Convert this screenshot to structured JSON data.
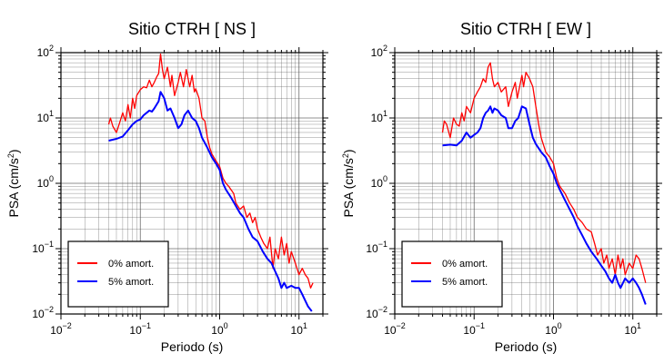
{
  "colors": {
    "series_0pct": "#ff0000",
    "series_5pct": "#0000ff",
    "grid": "#555555",
    "frame": "#000000"
  },
  "chart_data": [
    {
      "type": "line",
      "title": "Sitio CTRH [ NS ]",
      "xlabel": "Periodo (s)",
      "ylabel_main": "PSA (cm/s",
      "ylabel_sup": "2",
      "ylabel_end": ")",
      "xscale": "log",
      "yscale": "log",
      "xlim": [
        0.01,
        20
      ],
      "ylim": [
        0.01,
        100
      ],
      "x_ticks": [
        {
          "base": "10",
          "exp": "−2",
          "value": 0.01
        },
        {
          "base": "10",
          "exp": "−1",
          "value": 0.1
        },
        {
          "base": "10",
          "exp": "0",
          "value": 1
        },
        {
          "base": "10",
          "exp": "1",
          "value": 10
        }
      ],
      "y_ticks": [
        {
          "base": "10",
          "exp": "−2",
          "value": 0.01
        },
        {
          "base": "10",
          "exp": "−1",
          "value": 0.1
        },
        {
          "base": "10",
          "exp": "0",
          "value": 1
        },
        {
          "base": "10",
          "exp": "1",
          "value": 10
        },
        {
          "base": "10",
          "exp": "2",
          "value": 100
        }
      ],
      "grid": true,
      "legend_position": "bottom-left",
      "series": [
        {
          "name": "0% amort.",
          "color": "#ff0000",
          "points": [
            [
              0.04,
              8.0
            ],
            [
              0.042,
              10.0
            ],
            [
              0.045,
              7.5
            ],
            [
              0.05,
              6.0
            ],
            [
              0.055,
              8.5
            ],
            [
              0.06,
              12.0
            ],
            [
              0.065,
              9.0
            ],
            [
              0.07,
              16.0
            ],
            [
              0.075,
              10.0
            ],
            [
              0.08,
              20.0
            ],
            [
              0.085,
              14.0
            ],
            [
              0.09,
              22.0
            ],
            [
              0.1,
              27.0
            ],
            [
              0.11,
              30.0
            ],
            [
              0.12,
              29.0
            ],
            [
              0.13,
              38.0
            ],
            [
              0.14,
              30.0
            ],
            [
              0.15,
              35.0
            ],
            [
              0.16,
              42.0
            ],
            [
              0.17,
              48.0
            ],
            [
              0.18,
              95.0
            ],
            [
              0.19,
              55.0
            ],
            [
              0.2,
              40.0
            ],
            [
              0.22,
              60.0
            ],
            [
              0.24,
              30.0
            ],
            [
              0.25,
              45.0
            ],
            [
              0.27,
              22.0
            ],
            [
              0.3,
              35.0
            ],
            [
              0.32,
              50.0
            ],
            [
              0.35,
              30.0
            ],
            [
              0.38,
              55.0
            ],
            [
              0.4,
              40.0
            ],
            [
              0.42,
              30.0
            ],
            [
              0.45,
              45.0
            ],
            [
              0.48,
              25.0
            ],
            [
              0.5,
              28.0
            ],
            [
              0.55,
              20.0
            ],
            [
              0.6,
              10.0
            ],
            [
              0.65,
              9.0
            ],
            [
              0.7,
              5.0
            ],
            [
              0.75,
              3.5
            ],
            [
              0.8,
              2.8
            ],
            [
              0.9,
              2.2
            ],
            [
              1.0,
              1.8
            ],
            [
              1.1,
              1.2
            ],
            [
              1.2,
              1.0
            ],
            [
              1.3,
              0.9
            ],
            [
              1.5,
              0.7
            ],
            [
              1.6,
              0.5
            ],
            [
              1.8,
              0.4
            ],
            [
              2.0,
              0.45
            ],
            [
              2.2,
              0.3
            ],
            [
              2.4,
              0.35
            ],
            [
              2.6,
              0.25
            ],
            [
              2.8,
              0.3
            ],
            [
              3.0,
              0.2
            ],
            [
              3.3,
              0.15
            ],
            [
              3.6,
              0.12
            ],
            [
              4.0,
              0.1
            ],
            [
              4.3,
              0.15
            ],
            [
              4.7,
              0.05
            ],
            [
              5.0,
              0.1
            ],
            [
              5.5,
              0.07
            ],
            [
              6.0,
              0.15
            ],
            [
              6.5,
              0.08
            ],
            [
              7.0,
              0.12
            ],
            [
              7.5,
              0.06
            ],
            [
              8.0,
              0.09
            ],
            [
              9.0,
              0.06
            ],
            [
              10.0,
              0.04
            ],
            [
              11.0,
              0.05
            ],
            [
              12.0,
              0.04
            ],
            [
              13.0,
              0.035
            ],
            [
              14.0,
              0.025
            ],
            [
              15.0,
              0.03
            ]
          ]
        },
        {
          "name": "5% amort.",
          "color": "#0000ff",
          "points": [
            [
              0.04,
              4.5
            ],
            [
              0.05,
              4.8
            ],
            [
              0.06,
              5.2
            ],
            [
              0.07,
              6.5
            ],
            [
              0.08,
              8.0
            ],
            [
              0.09,
              9.0
            ],
            [
              0.1,
              9.5
            ],
            [
              0.11,
              11.0
            ],
            [
              0.12,
              12.0
            ],
            [
              0.13,
              13.0
            ],
            [
              0.14,
              12.5
            ],
            [
              0.15,
              14.0
            ],
            [
              0.17,
              18.0
            ],
            [
              0.18,
              25.0
            ],
            [
              0.2,
              20.0
            ],
            [
              0.22,
              13.0
            ],
            [
              0.24,
              14.0
            ],
            [
              0.27,
              10.0
            ],
            [
              0.3,
              7.0
            ],
            [
              0.33,
              8.0
            ],
            [
              0.36,
              11.0
            ],
            [
              0.4,
              13.0
            ],
            [
              0.45,
              10.0
            ],
            [
              0.5,
              9.0
            ],
            [
              0.55,
              7.0
            ],
            [
              0.6,
              5.0
            ],
            [
              0.7,
              3.5
            ],
            [
              0.8,
              2.5
            ],
            [
              0.9,
              2.0
            ],
            [
              1.0,
              1.6
            ],
            [
              1.1,
              1.0
            ],
            [
              1.2,
              0.8
            ],
            [
              1.4,
              0.6
            ],
            [
              1.6,
              0.45
            ],
            [
              1.8,
              0.35
            ],
            [
              2.0,
              0.3
            ],
            [
              2.3,
              0.2
            ],
            [
              2.6,
              0.15
            ],
            [
              3.0,
              0.13
            ],
            [
              3.5,
              0.09
            ],
            [
              4.0,
              0.07
            ],
            [
              4.5,
              0.06
            ],
            [
              5.0,
              0.045
            ],
            [
              5.5,
              0.035
            ],
            [
              6.0,
              0.025
            ],
            [
              6.5,
              0.03
            ],
            [
              7.0,
              0.025
            ],
            [
              8.0,
              0.027
            ],
            [
              9.0,
              0.025
            ],
            [
              10.0,
              0.025
            ],
            [
              11.0,
              0.02
            ],
            [
              12.0,
              0.016
            ],
            [
              13.0,
              0.013
            ],
            [
              14.5,
              0.011
            ]
          ]
        }
      ]
    },
    {
      "type": "line",
      "title": "Sitio CTRH [ EW ]",
      "xlabel": "Periodo (s)",
      "ylabel_main": "PSA (cm/s",
      "ylabel_sup": "2",
      "ylabel_end": ")",
      "xscale": "log",
      "yscale": "log",
      "xlim": [
        0.01,
        20
      ],
      "ylim": [
        0.01,
        100
      ],
      "x_ticks": [
        {
          "base": "10",
          "exp": "−2",
          "value": 0.01
        },
        {
          "base": "10",
          "exp": "−1",
          "value": 0.1
        },
        {
          "base": "10",
          "exp": "0",
          "value": 1
        },
        {
          "base": "10",
          "exp": "1",
          "value": 10
        }
      ],
      "y_ticks": [
        {
          "base": "10",
          "exp": "−2",
          "value": 0.01
        },
        {
          "base": "10",
          "exp": "−1",
          "value": 0.1
        },
        {
          "base": "10",
          "exp": "0",
          "value": 1
        },
        {
          "base": "10",
          "exp": "1",
          "value": 10
        },
        {
          "base": "10",
          "exp": "2",
          "value": 100
        }
      ],
      "grid": true,
      "legend_position": "bottom-left",
      "series": [
        {
          "name": "0% amort.",
          "color": "#ff0000",
          "points": [
            [
              0.04,
              6.0
            ],
            [
              0.042,
              9.0
            ],
            [
              0.045,
              8.0
            ],
            [
              0.05,
              5.0
            ],
            [
              0.055,
              10.0
            ],
            [
              0.06,
              8.0
            ],
            [
              0.065,
              7.5
            ],
            [
              0.07,
              12.0
            ],
            [
              0.075,
              9.0
            ],
            [
              0.08,
              15.0
            ],
            [
              0.09,
              12.0
            ],
            [
              0.1,
              20.0
            ],
            [
              0.11,
              25.0
            ],
            [
              0.12,
              30.0
            ],
            [
              0.13,
              40.0
            ],
            [
              0.14,
              35.0
            ],
            [
              0.15,
              60.0
            ],
            [
              0.16,
              70.0
            ],
            [
              0.17,
              40.0
            ],
            [
              0.18,
              30.0
            ],
            [
              0.2,
              35.0
            ],
            [
              0.22,
              25.0
            ],
            [
              0.25,
              30.0
            ],
            [
              0.27,
              15.0
            ],
            [
              0.3,
              25.0
            ],
            [
              0.33,
              35.0
            ],
            [
              0.35,
              20.0
            ],
            [
              0.4,
              45.0
            ],
            [
              0.42,
              30.0
            ],
            [
              0.45,
              50.0
            ],
            [
              0.5,
              40.0
            ],
            [
              0.55,
              30.0
            ],
            [
              0.6,
              15.0
            ],
            [
              0.65,
              8.0
            ],
            [
              0.7,
              5.0
            ],
            [
              0.8,
              3.0
            ],
            [
              0.9,
              2.5
            ],
            [
              1.0,
              2.0
            ],
            [
              1.1,
              1.2
            ],
            [
              1.2,
              0.9
            ],
            [
              1.4,
              0.7
            ],
            [
              1.6,
              0.5
            ],
            [
              1.8,
              0.4
            ],
            [
              2.0,
              0.3
            ],
            [
              2.3,
              0.25
            ],
            [
              2.6,
              0.2
            ],
            [
              3.0,
              0.18
            ],
            [
              3.3,
              0.12
            ],
            [
              3.6,
              0.08
            ],
            [
              4.0,
              0.1
            ],
            [
              4.3,
              0.06
            ],
            [
              4.7,
              0.08
            ],
            [
              5.0,
              0.05
            ],
            [
              5.5,
              0.07
            ],
            [
              6.0,
              0.04
            ],
            [
              6.5,
              0.08
            ],
            [
              7.0,
              0.05
            ],
            [
              7.5,
              0.07
            ],
            [
              8.0,
              0.04
            ],
            [
              9.0,
              0.06
            ],
            [
              10.0,
              0.05
            ],
            [
              11.0,
              0.08
            ],
            [
              12.0,
              0.07
            ],
            [
              13.0,
              0.05
            ],
            [
              14.5,
              0.03
            ]
          ]
        },
        {
          "name": "5% amort.",
          "color": "#0000ff",
          "points": [
            [
              0.04,
              3.8
            ],
            [
              0.05,
              3.9
            ],
            [
              0.06,
              3.8
            ],
            [
              0.07,
              4.5
            ],
            [
              0.08,
              6.0
            ],
            [
              0.09,
              5.0
            ],
            [
              0.1,
              5.5
            ],
            [
              0.11,
              6.0
            ],
            [
              0.12,
              7.0
            ],
            [
              0.13,
              10.0
            ],
            [
              0.14,
              12.0
            ],
            [
              0.15,
              13.0
            ],
            [
              0.16,
              15.0
            ],
            [
              0.17,
              12.0
            ],
            [
              0.18,
              14.0
            ],
            [
              0.2,
              13.0
            ],
            [
              0.22,
              11.0
            ],
            [
              0.25,
              10.0
            ],
            [
              0.27,
              7.0
            ],
            [
              0.3,
              7.0
            ],
            [
              0.33,
              9.0
            ],
            [
              0.36,
              10.0
            ],
            [
              0.4,
              15.0
            ],
            [
              0.45,
              14.0
            ],
            [
              0.5,
              8.0
            ],
            [
              0.55,
              5.0
            ],
            [
              0.6,
              4.0
            ],
            [
              0.7,
              3.0
            ],
            [
              0.8,
              2.5
            ],
            [
              0.9,
              1.8
            ],
            [
              1.0,
              1.4
            ],
            [
              1.1,
              1.0
            ],
            [
              1.2,
              0.8
            ],
            [
              1.4,
              0.55
            ],
            [
              1.6,
              0.4
            ],
            [
              1.8,
              0.3
            ],
            [
              2.0,
              0.22
            ],
            [
              2.3,
              0.16
            ],
            [
              2.6,
              0.12
            ],
            [
              3.0,
              0.09
            ],
            [
              3.5,
              0.07
            ],
            [
              4.0,
              0.055
            ],
            [
              4.5,
              0.045
            ],
            [
              5.0,
              0.035
            ],
            [
              5.5,
              0.03
            ],
            [
              6.0,
              0.04
            ],
            [
              6.5,
              0.03
            ],
            [
              7.0,
              0.025
            ],
            [
              8.0,
              0.035
            ],
            [
              9.0,
              0.03
            ],
            [
              10.0,
              0.035
            ],
            [
              11.0,
              0.03
            ],
            [
              12.0,
              0.025
            ],
            [
              13.0,
              0.02
            ],
            [
              14.5,
              0.014
            ]
          ]
        }
      ]
    }
  ]
}
